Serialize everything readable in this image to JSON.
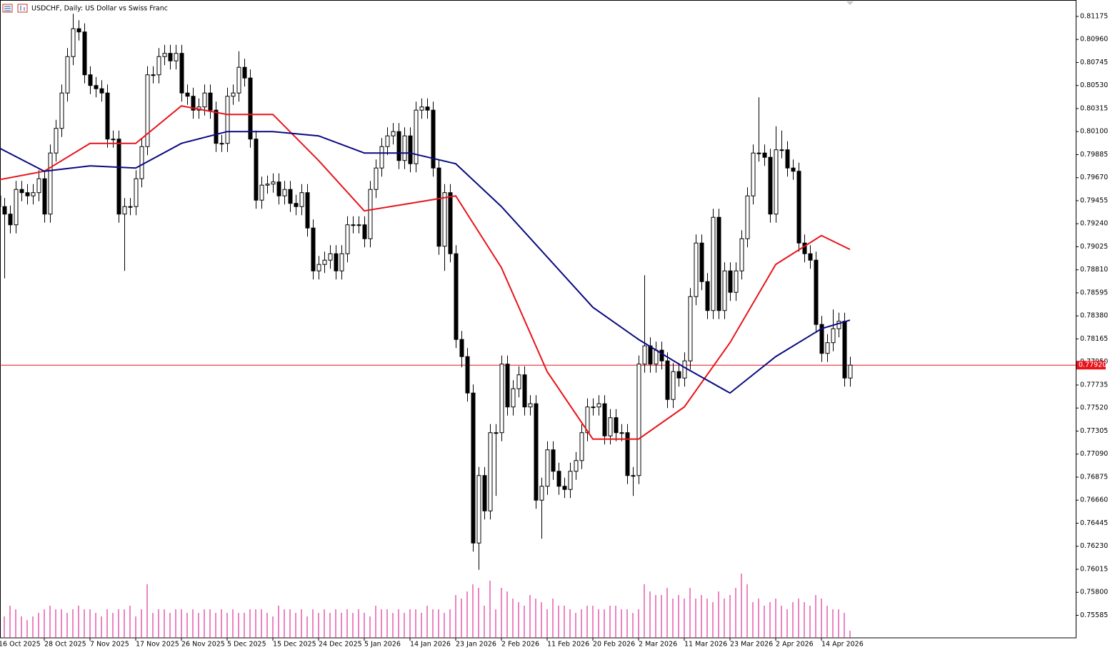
{
  "chart_data": {
    "type": "candlestick",
    "title": "USDCHF, Daily:  US Dollar vs Swiss Franc",
    "categories": [
      "16 Oct 2025",
      null,
      null,
      null,
      null,
      null,
      null,
      null,
      "28 Oct 2025",
      null,
      null,
      null,
      null,
      null,
      null,
      null,
      "7 Nov 2025",
      null,
      null,
      null,
      null,
      null,
      null,
      null,
      "17 Nov 2025",
      null,
      null,
      null,
      null,
      null,
      null,
      null,
      "26 Nov 2025",
      null,
      null,
      null,
      null,
      null,
      null,
      null,
      "5 Dec 2025",
      null,
      null,
      null,
      null,
      null,
      null,
      null,
      "15 Dec 2025",
      null,
      null,
      null,
      null,
      null,
      null,
      null,
      "24 Dec 2025",
      null,
      null,
      null,
      null,
      null,
      null,
      null,
      "5 Jan 2026",
      null,
      null,
      null,
      null,
      null,
      null,
      null,
      "14 Jan 2026",
      null,
      null,
      null,
      null,
      null,
      null,
      null,
      "23 Jan 2026",
      null,
      null,
      null,
      null,
      null,
      null,
      null,
      "2 Feb 2026",
      null,
      null,
      null,
      null,
      null,
      null,
      null,
      "11 Feb 2026",
      null,
      null,
      null,
      null,
      null,
      null,
      null,
      "20 Feb 2026",
      null,
      null,
      null,
      null,
      null,
      null,
      null,
      "2 Mar 2026",
      null,
      null,
      null,
      null,
      null,
      null,
      null,
      "11 Mar 2026",
      null,
      null,
      null,
      null,
      null,
      null,
      null,
      "23 Mar 2026",
      null,
      null,
      null,
      null,
      null,
      null,
      null,
      "2 Apr 2026",
      null,
      null,
      null,
      null,
      null,
      null,
      null,
      "14 Apr 2026",
      null,
      null,
      null,
      null,
      null
    ],
    "open": [
      0.795,
      0.794,
      0.7933,
      0.7923,
      0.7956,
      0.7953,
      0.795,
      0.7953,
      0.7966,
      0.7933,
      0.799,
      0.8013,
      0.8046,
      0.808,
      0.8106,
      0.8103,
      0.8063,
      0.8053,
      0.805,
      0.8046,
      0.8003,
      0.8003,
      0.7933,
      0.794,
      0.794,
      0.7966,
      0.7996,
      0.8063,
      0.8063,
      0.808,
      0.8083,
      0.8076,
      0.8083,
      0.8046,
      0.8043,
      0.803,
      0.8033,
      0.8046,
      0.803,
      0.7999,
      0.7999,
      0.8043,
      0.8046,
      0.807,
      0.806,
      0.8003,
      0.7946,
      0.796,
      0.7961,
      0.7963,
      0.795,
      0.7956,
      0.7943,
      0.794,
      0.7953,
      0.792,
      0.788,
      0.7886,
      0.789,
      0.7896,
      0.788,
      0.7896,
      0.7923,
      0.7923,
      0.7923,
      0.791,
      0.7956,
      0.7976,
      0.7996,
      0.8006,
      0.801,
      0.7983,
      0.8006,
      0.798,
      0.803,
      0.8033,
      0.803,
      0.7976,
      0.7903,
      0.7953,
      0.7896,
      0.7816,
      0.78,
      0.7766,
      0.7626,
      0.7689,
      0.7656,
      0.7729,
      0.7729,
      0.7793,
      0.7753,
      0.777,
      0.7783,
      0.7753,
      0.7756,
      0.7666,
      0.7679,
      0.7713,
      0.7693,
      0.7679,
      0.7676,
      0.7693,
      0.7703,
      0.7729,
      0.7753,
      0.7753,
      0.7756,
      0.7726,
      0.7743,
      0.7729,
      0.7729,
      0.7689,
      0.7689,
      0.7793,
      0.781,
      0.7793,
      0.7806,
      0.7796,
      0.776,
      0.7786,
      0.778,
      0.7796,
      0.7856,
      0.7906,
      0.787,
      0.7843,
      0.793,
      0.7843,
      0.788,
      0.786,
      0.788,
      0.791,
      0.795,
      0.799,
      0.799,
      0.7986,
      0.7933,
      0.7993,
      0.7993,
      0.7976,
      0.7973,
      0.7906,
      0.7896,
      0.789,
      0.783,
      0.7803,
      0.7813,
      0.7826,
      0.7833,
      0.778
    ],
    "high": [
      0.7958,
      0.7948,
      0.7941,
      0.7964,
      0.7964,
      0.7961,
      0.7961,
      0.7974,
      0.7974,
      0.7998,
      0.8021,
      0.8054,
      0.8088,
      0.812,
      0.8114,
      0.8111,
      0.8071,
      0.8061,
      0.8058,
      0.8054,
      0.8011,
      0.8011,
      0.7948,
      0.7948,
      0.7974,
      0.8004,
      0.8071,
      0.8071,
      0.8088,
      0.8091,
      0.8091,
      0.8091,
      0.8091,
      0.8054,
      0.8051,
      0.8041,
      0.8054,
      0.8054,
      0.8038,
      0.8007,
      0.8051,
      0.8054,
      0.8085,
      0.8078,
      0.8068,
      0.8011,
      0.7968,
      0.7969,
      0.7971,
      0.7971,
      0.7964,
      0.7964,
      0.7951,
      0.7961,
      0.7961,
      0.7928,
      0.7894,
      0.7898,
      0.7904,
      0.7904,
      0.7904,
      0.7931,
      0.7931,
      0.7931,
      0.7931,
      0.7964,
      0.7984,
      0.8004,
      0.8014,
      0.8018,
      0.8018,
      0.8014,
      0.8014,
      0.8038,
      0.8041,
      0.8041,
      0.8038,
      0.7984,
      0.7961,
      0.7961,
      0.7904,
      0.7824,
      0.7808,
      0.7774,
      0.7697,
      0.7697,
      0.7737,
      0.7737,
      0.7801,
      0.7801,
      0.7778,
      0.7791,
      0.7791,
      0.7764,
      0.7764,
      0.7687,
      0.7721,
      0.7721,
      0.7701,
      0.7687,
      0.7701,
      0.7711,
      0.7737,
      0.7761,
      0.7761,
      0.7764,
      0.7764,
      0.7751,
      0.7751,
      0.7737,
      0.7737,
      0.7697,
      0.7801,
      0.7876,
      0.7818,
      0.7814,
      0.7814,
      0.7804,
      0.7794,
      0.7794,
      0.7804,
      0.7864,
      0.7914,
      0.7914,
      0.7878,
      0.7938,
      0.7938,
      0.7888,
      0.7888,
      0.7888,
      0.7918,
      0.7958,
      0.7998,
      0.8042,
      0.7998,
      0.7994,
      0.8015,
      0.8011,
      0.8001,
      0.7984,
      0.7981,
      0.7914,
      0.7904,
      0.7898,
      0.7838,
      0.7821,
      0.7844,
      0.7841,
      0.7841,
      0.78
    ],
    "low": [
      0.7932,
      0.7873,
      0.7915,
      0.7915,
      0.7945,
      0.7942,
      0.7942,
      0.7945,
      0.7925,
      0.7925,
      0.7982,
      0.8005,
      0.8038,
      0.8072,
      0.8095,
      0.8055,
      0.8045,
      0.8042,
      0.8038,
      0.7995,
      0.7995,
      0.7925,
      0.788,
      0.7932,
      0.7932,
      0.7958,
      0.7988,
      0.8055,
      0.8055,
      0.8072,
      0.8068,
      0.8068,
      0.8038,
      0.8035,
      0.8022,
      0.8022,
      0.8025,
      0.8022,
      0.7991,
      0.7991,
      0.7991,
      0.8035,
      0.8038,
      0.8052,
      0.7995,
      0.7938,
      0.7938,
      0.7952,
      0.7953,
      0.7942,
      0.7942,
      0.7935,
      0.7932,
      0.7932,
      0.7912,
      0.7872,
      0.7872,
      0.7878,
      0.7882,
      0.7872,
      0.7872,
      0.7888,
      0.7915,
      0.7915,
      0.7902,
      0.7902,
      0.7948,
      0.7968,
      0.7988,
      0.7998,
      0.7975,
      0.7975,
      0.7972,
      0.7972,
      0.8022,
      0.8022,
      0.7968,
      0.7895,
      0.788,
      0.7888,
      0.7808,
      0.779,
      0.7758,
      0.7618,
      0.7601,
      0.7648,
      0.7648,
      0.767,
      0.7721,
      0.7745,
      0.7745,
      0.7762,
      0.7745,
      0.7745,
      0.7658,
      0.763,
      0.7671,
      0.7685,
      0.7671,
      0.7668,
      0.7668,
      0.7685,
      0.7695,
      0.7721,
      0.7745,
      0.7745,
      0.7718,
      0.7718,
      0.7721,
      0.7721,
      0.7681,
      0.767,
      0.7681,
      0.7785,
      0.7785,
      0.7785,
      0.7788,
      0.7752,
      0.7752,
      0.7772,
      0.7772,
      0.7788,
      0.7848,
      0.7862,
      0.7835,
      0.7835,
      0.7835,
      0.7835,
      0.7852,
      0.7852,
      0.7872,
      0.7902,
      0.7942,
      0.7982,
      0.7978,
      0.7925,
      0.7925,
      0.7985,
      0.7968,
      0.7965,
      0.7898,
      0.7888,
      0.7882,
      0.7822,
      0.7795,
      0.7795,
      0.7805,
      0.7818,
      0.7772,
      0.7772
    ],
    "close": [
      0.794,
      0.7933,
      0.7923,
      0.7956,
      0.7953,
      0.795,
      0.7953,
      0.7966,
      0.7933,
      0.799,
      0.8013,
      0.8046,
      0.808,
      0.8106,
      0.8103,
      0.8063,
      0.8053,
      0.805,
      0.8046,
      0.8003,
      0.8003,
      0.7933,
      0.794,
      0.794,
      0.7966,
      0.7996,
      0.8063,
      0.8063,
      0.808,
      0.8083,
      0.8076,
      0.8083,
      0.8046,
      0.8043,
      0.803,
      0.8033,
      0.8046,
      0.803,
      0.7999,
      0.7999,
      0.8043,
      0.8046,
      0.807,
      0.806,
      0.8003,
      0.7946,
      0.796,
      0.7961,
      0.7963,
      0.795,
      0.7956,
      0.7943,
      0.794,
      0.7953,
      0.792,
      0.788,
      0.7886,
      0.789,
      0.7896,
      0.788,
      0.7896,
      0.7923,
      0.7923,
      0.7923,
      0.791,
      0.7956,
      0.7976,
      0.7996,
      0.8006,
      0.801,
      0.7983,
      0.8006,
      0.798,
      0.803,
      0.8033,
      0.803,
      0.7976,
      0.7903,
      0.7953,
      0.7896,
      0.7816,
      0.78,
      0.7766,
      0.7626,
      0.7689,
      0.7656,
      0.7729,
      0.7729,
      0.7793,
      0.7753,
      0.777,
      0.7783,
      0.7753,
      0.7756,
      0.7666,
      0.7679,
      0.7713,
      0.7693,
      0.7679,
      0.7676,
      0.7693,
      0.7703,
      0.7729,
      0.7753,
      0.7753,
      0.7756,
      0.7726,
      0.7743,
      0.7729,
      0.7729,
      0.7689,
      0.7689,
      0.7793,
      0.781,
      0.7793,
      0.7806,
      0.7796,
      0.776,
      0.7786,
      0.778,
      0.7796,
      0.7856,
      0.7906,
      0.787,
      0.7843,
      0.793,
      0.7843,
      0.788,
      0.786,
      0.788,
      0.791,
      0.795,
      0.799,
      0.799,
      0.7986,
      0.7933,
      0.7993,
      0.7993,
      0.7976,
      0.7973,
      0.7906,
      0.7896,
      0.789,
      0.783,
      0.7803,
      0.7813,
      0.7826,
      0.7833,
      0.778,
      0.7792
    ],
    "up_color": "#ffffff",
    "down_color": "#000000",
    "volume": [
      35,
      30,
      45,
      40,
      30,
      25,
      30,
      35,
      40,
      45,
      40,
      40,
      35,
      40,
      45,
      40,
      40,
      35,
      30,
      40,
      35,
      40,
      40,
      45,
      30,
      40,
      75,
      35,
      40,
      40,
      35,
      40,
      40,
      35,
      40,
      35,
      40,
      40,
      35,
      40,
      35,
      40,
      35,
      35,
      40,
      40,
      40,
      35,
      30,
      45,
      40,
      40,
      35,
      40,
      30,
      40,
      35,
      40,
      35,
      40,
      35,
      40,
      35,
      40,
      35,
      30,
      45,
      40,
      40,
      35,
      40,
      35,
      40,
      40,
      35,
      45,
      40,
      40,
      35,
      40,
      60,
      55,
      65,
      75,
      70,
      45,
      80,
      40,
      70,
      65,
      55,
      50,
      45,
      60,
      55,
      50,
      40,
      55,
      45,
      45,
      40,
      35,
      40,
      45,
      45,
      40,
      40,
      45,
      45,
      40,
      40,
      35,
      40,
      75,
      65,
      60,
      60,
      70,
      55,
      60,
      55,
      70,
      55,
      60,
      55,
      50,
      65,
      55,
      60,
      70,
      90,
      75,
      50,
      55,
      45,
      50,
      55,
      45,
      40,
      50,
      55,
      50,
      45,
      60,
      55,
      45,
      40,
      40,
      35,
      10
    ],
    "volume_color": "#e0339a",
    "y2lim": [
      0,
      100
    ],
    "series": [
      {
        "color": "#e8141c",
        "x": [
          0,
          8,
          16,
          24,
          32,
          40,
          48,
          56,
          64,
          72,
          80,
          88,
          96,
          104,
          112,
          120,
          128,
          136,
          144,
          149
        ],
        "values": [
          0.7965,
          0.7973,
          0.7999,
          0.7999,
          0.8034,
          0.8026,
          0.8026,
          0.7983,
          0.7936,
          0.7943,
          0.795,
          0.7883,
          0.7786,
          0.7723,
          0.7723,
          0.7753,
          0.7813,
          0.7886,
          0.7913,
          0.79
        ]
      },
      {
        "color": "#0a0a80",
        "x": [
          0,
          8,
          16,
          24,
          32,
          40,
          48,
          56,
          64,
          72,
          80,
          88,
          96,
          104,
          112,
          120,
          128,
          136,
          144,
          149
        ],
        "values": [
          0.7995,
          0.7973,
          0.7978,
          0.7976,
          0.7999,
          0.801,
          0.801,
          0.8006,
          0.799,
          0.799,
          0.798,
          0.794,
          0.7893,
          0.7846,
          0.7816,
          0.779,
          0.7766,
          0.78,
          0.7826,
          0.7834
        ]
      }
    ],
    "ylim": [
      0.75375,
      0.81328
    ],
    "yticks": [
      0.81175,
      {
        "value": 0.8096,
        "label": "0.80960"
      },
      0.80745,
      {
        "value": 0.8053,
        "label": "0.80530"
      },
      0.80315,
      {
        "value": 0.801,
        "label": "0.80100"
      },
      0.79885,
      {
        "value": 0.7967,
        "label": "0.79670"
      },
      0.79455,
      {
        "value": 0.7924,
        "label": "0.79240"
      },
      0.79025,
      {
        "value": 0.7881,
        "label": "0.78810"
      },
      0.78595,
      {
        "value": 0.7838,
        "label": "0.78380"
      },
      0.78165,
      {
        "value": 0.7795,
        "label": "0.77950"
      },
      0.77735,
      {
        "value": 0.7752,
        "label": "0.77520"
      },
      0.77305,
      {
        "value": 0.7709,
        "label": "0.77090"
      },
      0.76875,
      {
        "value": 0.7666,
        "label": "0.76660"
      },
      0.76445,
      {
        "value": 0.7623,
        "label": "0.76230"
      },
      0.76015,
      {
        "value": 0.758,
        "label": "0.75800"
      },
      0.75585
    ],
    "price_line": {
      "value": 0.7792,
      "label": "0.77920",
      "color": "#e8141c"
    }
  }
}
